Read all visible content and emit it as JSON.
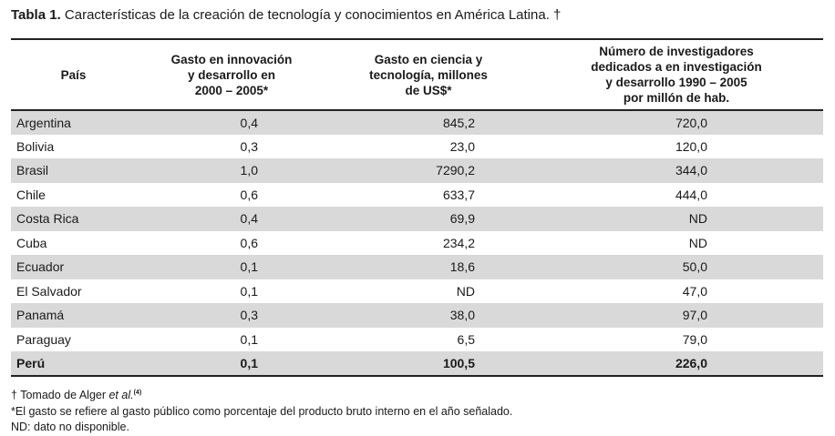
{
  "title": {
    "label": "Tabla 1.",
    "text": " Características de la creación de tecnología y conocimientos en América Latina. †"
  },
  "headers": [
    [
      "País"
    ],
    [
      "Gasto en innovación",
      "y desarrollo en",
      "2000 – 2005*"
    ],
    [
      "Gasto en ciencia y",
      "tecnología, millones",
      "de US$*"
    ],
    [
      "Número de investigadores",
      "dedicados a en investigación",
      "y desarrollo 1990 – 2005",
      "por millón de hab."
    ]
  ],
  "rows": [
    [
      "Argentina",
      "0,4",
      "845,2",
      "720,0"
    ],
    [
      "Bolivia",
      "0,3",
      "23,0",
      "120,0"
    ],
    [
      "Brasil",
      "1,0",
      "7290,2",
      "344,0"
    ],
    [
      "Chile",
      "0,6",
      "633,7",
      "444,0"
    ],
    [
      "Costa Rica",
      "0,4",
      "69,9",
      "ND"
    ],
    [
      "Cuba",
      "0,6",
      "234,2",
      "ND"
    ],
    [
      "Ecuador",
      "0,1",
      "18,6",
      "50,0"
    ],
    [
      "El Salvador",
      "0,1",
      "ND",
      "47,0"
    ],
    [
      "Panamá",
      "0,3",
      "38,0",
      "97,0"
    ],
    [
      "Paraguay",
      "0,1",
      "6,5",
      "79,0"
    ],
    [
      "Perú",
      "0,1",
      "100,5",
      "226,0"
    ]
  ],
  "notes": {
    "source_prefix": "† Tomado de Alger ",
    "source_etal": "et al.",
    "source_ref": "(4)",
    "gasto": "*El gasto se refiere al gasto público como porcentaje del producto bruto interno en el año señalado.",
    "nd": "ND: dato no disponible."
  },
  "colors": {
    "row_shade": "#d9d9d9",
    "rule": "#222222"
  }
}
